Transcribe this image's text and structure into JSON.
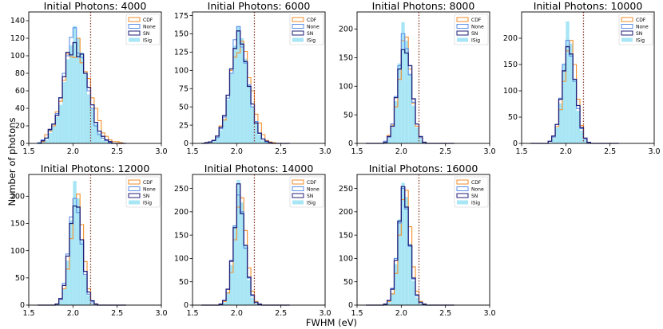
{
  "figure": {
    "ylabel": "Number of photons",
    "xlabel": "FWHM (eV)"
  },
  "colors": {
    "CDF": "#f28e2b",
    "None": "#5b8fe8",
    "SN": "#1f1f7a",
    "ISig": "#a8e6f5",
    "dotted_line": "#8c3b2e"
  },
  "chart_data": [
    {
      "type": "histogram",
      "title": "Initial Photons: 4000",
      "xlim": [
        1.5,
        3.0
      ],
      "ylim": [
        0,
        150
      ],
      "xticks": [
        "1.5",
        "2.0",
        "2.5",
        "3.0"
      ],
      "yticks": [
        0,
        20,
        40,
        60,
        80,
        100,
        120,
        140
      ],
      "legend": [
        "CDF",
        "None",
        "SN",
        "ISig"
      ],
      "legend_position": "top-right",
      "mean_line": 2.2,
      "bins": {
        "start": 1.6,
        "width": 0.04
      },
      "series": [
        {
          "name": "CDF",
          "style": "step",
          "values": [
            0,
            2,
            10,
            14,
            20,
            36,
            48,
            72,
            102,
            99,
            98,
            120,
            92,
            82,
            74,
            52,
            40,
            26,
            12,
            8,
            4,
            2,
            2,
            1,
            0
          ]
        },
        {
          "name": "None",
          "style": "step",
          "values": [
            1,
            4,
            6,
            15,
            22,
            34,
            52,
            80,
            100,
            121,
            132,
            103,
            98,
            80,
            60,
            40,
            20,
            10,
            6,
            3,
            1,
            0,
            0,
            0,
            0
          ]
        },
        {
          "name": "SN",
          "style": "step",
          "values": [
            0,
            3,
            6,
            16,
            22,
            32,
            52,
            76,
            104,
            101,
            115,
            99,
            102,
            80,
            64,
            44,
            24,
            14,
            8,
            4,
            2,
            0,
            0,
            0,
            0
          ]
        },
        {
          "name": "ISig",
          "style": "bar",
          "values": [
            0,
            2,
            4,
            12,
            20,
            30,
            44,
            70,
            96,
            112,
            134,
            120,
            104,
            80,
            56,
            40,
            22,
            12,
            4,
            2,
            0,
            0,
            0,
            0,
            0
          ]
        }
      ]
    },
    {
      "type": "histogram",
      "title": "Initial Photons: 6000",
      "xlim": [
        1.5,
        3.0
      ],
      "ylim": [
        0,
        180
      ],
      "xticks": [
        "1.5",
        "2.0",
        "2.5",
        "3.0"
      ],
      "yticks": [
        0,
        25,
        50,
        75,
        100,
        125,
        150,
        175
      ],
      "legend": [
        "CDF",
        "None",
        "SN",
        "ISig"
      ],
      "legend_position": "top-right",
      "mean_line": 2.2,
      "bins": {
        "start": 1.6,
        "width": 0.04
      },
      "series": [
        {
          "name": "CDF",
          "style": "step",
          "values": [
            0,
            1,
            2,
            4,
            10,
            24,
            32,
            66,
            100,
            118,
            124,
            140,
            126,
            90,
            72,
            40,
            28,
            12,
            4,
            2,
            1,
            0,
            0,
            0,
            0
          ]
        },
        {
          "name": "None",
          "style": "step",
          "values": [
            0,
            1,
            2,
            4,
            8,
            20,
            36,
            62,
            96,
            142,
            160,
            132,
            110,
            80,
            50,
            30,
            14,
            6,
            2,
            1,
            0,
            0,
            0,
            0,
            0
          ]
        },
        {
          "name": "SN",
          "style": "step",
          "values": [
            0,
            1,
            2,
            4,
            10,
            22,
            38,
            66,
            102,
            130,
            154,
            136,
            112,
            78,
            54,
            28,
            14,
            6,
            3,
            1,
            0,
            0,
            0,
            0,
            0
          ]
        },
        {
          "name": "ISig",
          "style": "bar",
          "values": [
            0,
            0,
            2,
            4,
            8,
            18,
            34,
            60,
            96,
            134,
            160,
            144,
            116,
            80,
            50,
            28,
            12,
            4,
            2,
            0,
            0,
            0,
            0,
            0,
            0
          ]
        }
      ]
    },
    {
      "type": "histogram",
      "title": "Initial Photons: 8000",
      "xlim": [
        1.5,
        3.0
      ],
      "ylim": [
        0,
        230
      ],
      "xticks": [
        "1.5",
        "2.0",
        "2.5",
        "3.0"
      ],
      "yticks": [
        0,
        50,
        100,
        150,
        200
      ],
      "legend": [
        "CDF",
        "None",
        "SN",
        "ISig"
      ],
      "legend_position": "top-right",
      "mean_line": 2.2,
      "bins": {
        "start": 1.6,
        "width": 0.04
      },
      "series": [
        {
          "name": "CDF",
          "style": "step",
          "values": [
            0,
            0,
            0,
            0,
            0,
            2,
            14,
            32,
            64,
            112,
            180,
            186,
            130,
            70,
            30,
            10,
            2,
            0,
            0,
            0,
            0,
            0,
            0,
            0,
            0
          ]
        },
        {
          "name": "None",
          "style": "step",
          "values": [
            0,
            0,
            0,
            0,
            0,
            4,
            10,
            34,
            82,
            136,
            192,
            166,
            120,
            72,
            34,
            10,
            2,
            0,
            0,
            0,
            0,
            0,
            0,
            0,
            0
          ]
        },
        {
          "name": "SN",
          "style": "step",
          "values": [
            0,
            0,
            0,
            0,
            0,
            2,
            12,
            30,
            80,
            130,
            164,
            158,
            136,
            78,
            34,
            12,
            2,
            0,
            0,
            0,
            0,
            0,
            0,
            0,
            0
          ]
        },
        {
          "name": "ISig",
          "style": "bar",
          "values": [
            0,
            0,
            0,
            0,
            0,
            2,
            8,
            28,
            74,
            140,
            212,
            180,
            122,
            66,
            28,
            8,
            2,
            0,
            0,
            0,
            0,
            0,
            0,
            0,
            0
          ]
        }
      ]
    },
    {
      "type": "histogram",
      "title": "Initial Photons: 10000",
      "xlim": [
        1.5,
        3.0
      ],
      "ylim": [
        0,
        250
      ],
      "xticks": [
        "1.5",
        "2.0",
        "2.5",
        "3.0"
      ],
      "yticks": [
        0,
        50,
        100,
        150,
        200
      ],
      "legend": [
        "CDF",
        "None",
        "SN",
        "ISig"
      ],
      "legend_position": "top-right",
      "mean_line": 2.2,
      "bins": {
        "start": 1.6,
        "width": 0.04
      },
      "series": [
        {
          "name": "CDF",
          "style": "step",
          "values": [
            0,
            0,
            0,
            0,
            0,
            4,
            12,
            32,
            64,
            118,
            176,
            196,
            150,
            84,
            34,
            10,
            2,
            0,
            0,
            0,
            0,
            0,
            0,
            0,
            0
          ]
        },
        {
          "name": "None",
          "style": "step",
          "values": [
            0,
            0,
            0,
            0,
            0,
            4,
            12,
            36,
            86,
            150,
            196,
            166,
            118,
            66,
            28,
            8,
            2,
            0,
            0,
            0,
            0,
            0,
            0,
            0,
            0
          ]
        },
        {
          "name": "SN",
          "style": "step",
          "values": [
            0,
            0,
            0,
            0,
            0,
            4,
            14,
            36,
            84,
            138,
            184,
            170,
            122,
            72,
            30,
            10,
            2,
            0,
            0,
            0,
            0,
            0,
            0,
            0,
            0
          ]
        },
        {
          "name": "ISig",
          "style": "bar",
          "values": [
            0,
            0,
            0,
            0,
            0,
            2,
            10,
            30,
            76,
            152,
            232,
            190,
            122,
            62,
            24,
            6,
            2,
            0,
            0,
            0,
            0,
            0,
            0,
            0,
            0
          ]
        }
      ]
    },
    {
      "type": "histogram",
      "title": "Initial Photons: 12000",
      "xlim": [
        1.5,
        3.0
      ],
      "ylim": [
        0,
        240
      ],
      "xticks": [
        "1.5",
        "2.0",
        "2.5",
        "3.0"
      ],
      "yticks": [
        0,
        50,
        100,
        150,
        200
      ],
      "legend": [
        "CDF",
        "None",
        "SN",
        "ISig"
      ],
      "legend_position": "top-right",
      "mean_line": 2.2,
      "bins": {
        "start": 1.6,
        "width": 0.04
      },
      "series": [
        {
          "name": "CDF",
          "style": "step",
          "values": [
            0,
            0,
            0,
            0,
            0,
            2,
            10,
            30,
            66,
            122,
            196,
            204,
            148,
            80,
            30,
            8,
            2,
            0,
            0,
            0,
            0,
            0,
            0,
            0,
            0
          ]
        },
        {
          "name": "None",
          "style": "step",
          "values": [
            0,
            0,
            0,
            0,
            0,
            2,
            10,
            40,
            94,
            162,
            196,
            170,
            112,
            56,
            20,
            6,
            2,
            0,
            0,
            0,
            0,
            0,
            0,
            0,
            0
          ]
        },
        {
          "name": "SN",
          "style": "step",
          "values": [
            0,
            0,
            0,
            0,
            0,
            2,
            12,
            36,
            90,
            150,
            182,
            180,
            120,
            62,
            24,
            8,
            2,
            0,
            0,
            0,
            0,
            0,
            0,
            0,
            0
          ]
        },
        {
          "name": "ISig",
          "style": "bar",
          "values": [
            0,
            0,
            0,
            0,
            0,
            2,
            8,
            30,
            82,
            156,
            228,
            196,
            118,
            54,
            18,
            4,
            0,
            0,
            0,
            0,
            0,
            0,
            0,
            0,
            0
          ]
        }
      ]
    },
    {
      "type": "histogram",
      "title": "Initial Photons: 14000",
      "xlim": [
        1.5,
        3.0
      ],
      "ylim": [
        0,
        280
      ],
      "xticks": [
        "1.5",
        "2.0",
        "2.5",
        "3.0"
      ],
      "yticks": [
        0,
        50,
        100,
        150,
        200,
        250
      ],
      "legend": [
        "CDF",
        "None",
        "SN",
        "ISig"
      ],
      "legend_position": "top-right",
      "mean_line": 2.2,
      "bins": {
        "start": 1.6,
        "width": 0.04
      },
      "series": [
        {
          "name": "CDF",
          "style": "step",
          "values": [
            0,
            0,
            0,
            0,
            0,
            2,
            8,
            26,
            70,
            140,
            210,
            230,
            160,
            80,
            30,
            8,
            2,
            0,
            0,
            0,
            0,
            0,
            0,
            0,
            0
          ]
        },
        {
          "name": "None",
          "style": "step",
          "values": [
            0,
            0,
            0,
            0,
            0,
            2,
            10,
            34,
            96,
            170,
            236,
            200,
            122,
            58,
            20,
            6,
            2,
            0,
            0,
            0,
            0,
            0,
            0,
            0,
            0
          ]
        },
        {
          "name": "SN",
          "style": "step",
          "values": [
            0,
            0,
            0,
            0,
            0,
            2,
            10,
            34,
            94,
            166,
            260,
            196,
            128,
            60,
            22,
            6,
            2,
            0,
            0,
            0,
            0,
            0,
            0,
            0,
            0
          ]
        },
        {
          "name": "ISig",
          "style": "bar",
          "values": [
            0,
            0,
            0,
            0,
            0,
            2,
            6,
            28,
            86,
            170,
            268,
            220,
            128,
            54,
            16,
            4,
            0,
            0,
            0,
            0,
            0,
            0,
            0,
            0,
            0
          ]
        }
      ]
    },
    {
      "type": "histogram",
      "title": "Initial Photons: 16000",
      "xlim": [
        1.5,
        3.0
      ],
      "ylim": [
        0,
        280
      ],
      "xticks": [
        "1.5",
        "2.0",
        "2.5",
        "3.0"
      ],
      "yticks": [
        0,
        50,
        100,
        150,
        200,
        250
      ],
      "legend": [
        "CDF",
        "None",
        "SN",
        "ISig"
      ],
      "legend_position": "top-right",
      "mean_line": 2.2,
      "bins": {
        "start": 1.6,
        "width": 0.04
      },
      "series": [
        {
          "name": "CDF",
          "style": "step",
          "values": [
            0,
            0,
            0,
            0,
            0,
            2,
            8,
            24,
            68,
            150,
            226,
            246,
            168,
            82,
            30,
            8,
            2,
            0,
            0,
            0,
            0,
            0,
            0,
            0,
            0
          ]
        },
        {
          "name": "None",
          "style": "step",
          "values": [
            0,
            0,
            0,
            0,
            0,
            2,
            10,
            36,
            100,
            176,
            250,
            206,
            126,
            56,
            20,
            6,
            2,
            0,
            0,
            0,
            0,
            0,
            0,
            0,
            0
          ]
        },
        {
          "name": "SN",
          "style": "step",
          "values": [
            0,
            0,
            0,
            0,
            0,
            2,
            10,
            34,
            96,
            180,
            254,
            210,
            128,
            58,
            22,
            6,
            2,
            0,
            0,
            0,
            0,
            0,
            0,
            0,
            0
          ]
        },
        {
          "name": "ISig",
          "style": "bar",
          "values": [
            0,
            0,
            0,
            0,
            0,
            0,
            6,
            26,
            88,
            184,
            262,
            232,
            132,
            52,
            16,
            4,
            0,
            0,
            0,
            0,
            0,
            0,
            0,
            0,
            0
          ]
        }
      ]
    }
  ]
}
